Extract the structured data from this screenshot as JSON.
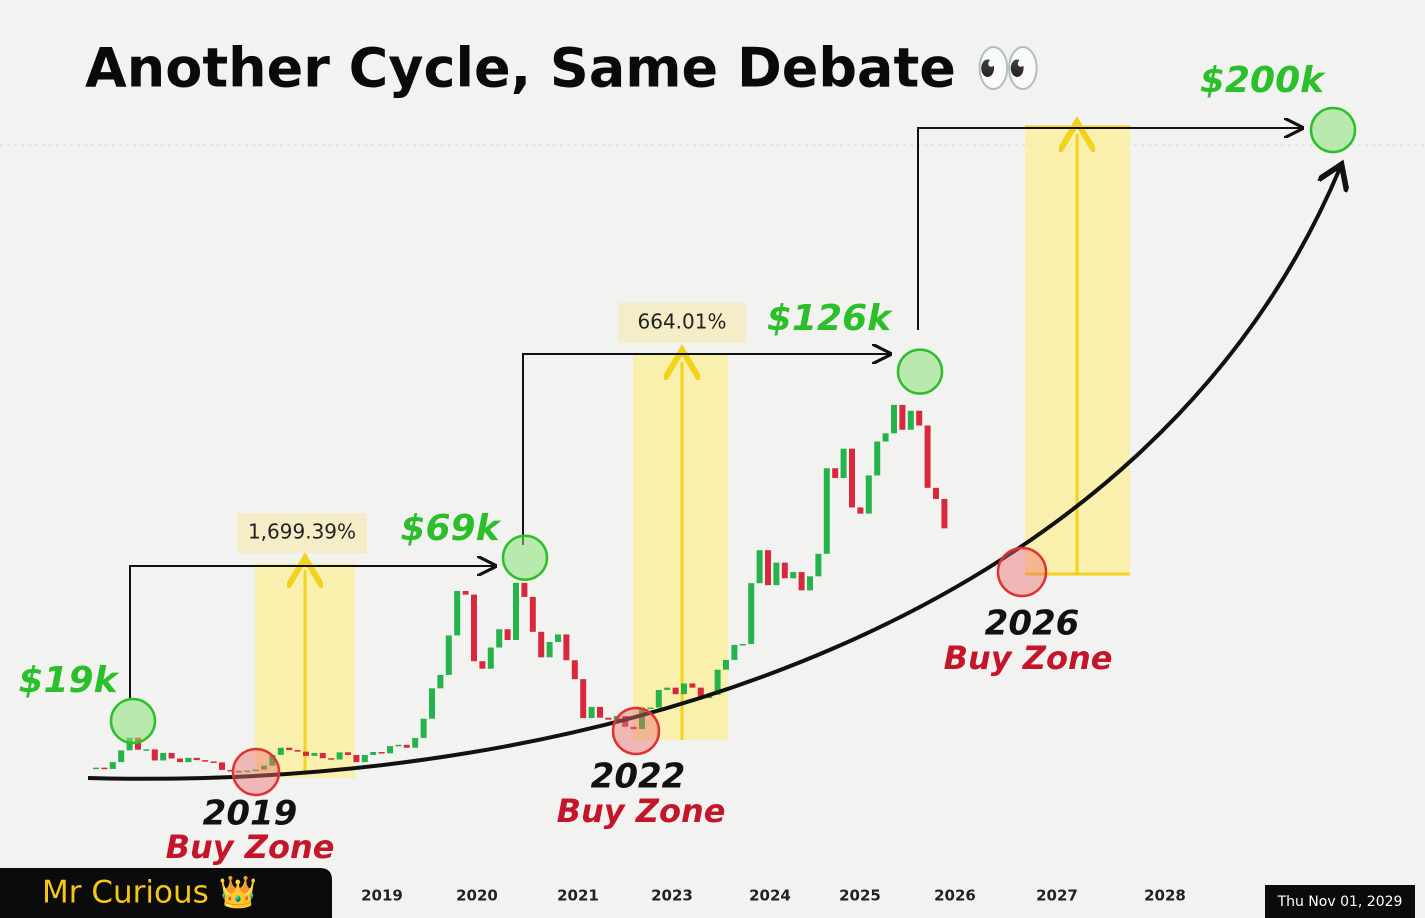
{
  "chart_data": {
    "type": "candlestick",
    "title": "Another Cycle, Same Debate 👀",
    "values": [
      4.7,
      4.3,
      6.4,
      10,
      13.9,
      10.2,
      10.3,
      6.9,
      9.2,
      7.5,
      6.4,
      7.7,
      7.0,
      6.6,
      6.3,
      4.0,
      3.7,
      3.5,
      3.8,
      4.1,
      5.3,
      8.6,
      10.8,
      10.1,
      9.6,
      8.3,
      9.2,
      7.6,
      7.2,
      9.4,
      8.6,
      6.4,
      8.6,
      9.5,
      9.1,
      11.3,
      11.7,
      10.8,
      13.8,
      19.7,
      29.0,
      33.1,
      45.2,
      58.8,
      57.7,
      37.3,
      35.0,
      41.5,
      47.1,
      43.8,
      61.3,
      57.0,
      46.3,
      38.5,
      43.2,
      45.5,
      37.6,
      31.8,
      19.9,
      23.3,
      20.0,
      19.4,
      20.5,
      17.2,
      16.5,
      23.1,
      23.1,
      28.5,
      29.2,
      27.2,
      30.5,
      29.2,
      26.0,
      27.0,
      34.7,
      37.7,
      42.3,
      42.6,
      61.2,
      71.3,
      60.6,
      67.5,
      62.7,
      64.6,
      59.0,
      63.3,
      70.2,
      96.4,
      93.4,
      102.4,
      84.4,
      82.5,
      94.2,
      104.6,
      107.1,
      115.8,
      108.2,
      114.0,
      109.5,
      90.4,
      87.0,
      78.0
    ],
    "up_color": "#25b34b",
    "down_color": "#d8283c",
    "ylim": [
      0,
      200
    ],
    "peaks": {
      "values": [
        19,
        69,
        126,
        200
      ],
      "value_labels": [
        "$19k",
        "$69k",
        "$126k",
        "$200k"
      ],
      "color": "#2cbf2c"
    },
    "gain_labels": [
      "1,699.39%",
      "664.01%"
    ],
    "buy_zones": [
      {
        "year": "2019",
        "label": "Buy Zone"
      },
      {
        "year": "2022",
        "label": "Buy Zone"
      },
      {
        "year": "2026",
        "label": "Buy Zone"
      }
    ],
    "x_labels": [
      "2019",
      "2020",
      "2021",
      "2023",
      "2024",
      "2025",
      "2026",
      "2027",
      "2028"
    ]
  },
  "watermark": "Mr Curious 👑",
  "date_stamp": "Thu Nov 01, 2029"
}
